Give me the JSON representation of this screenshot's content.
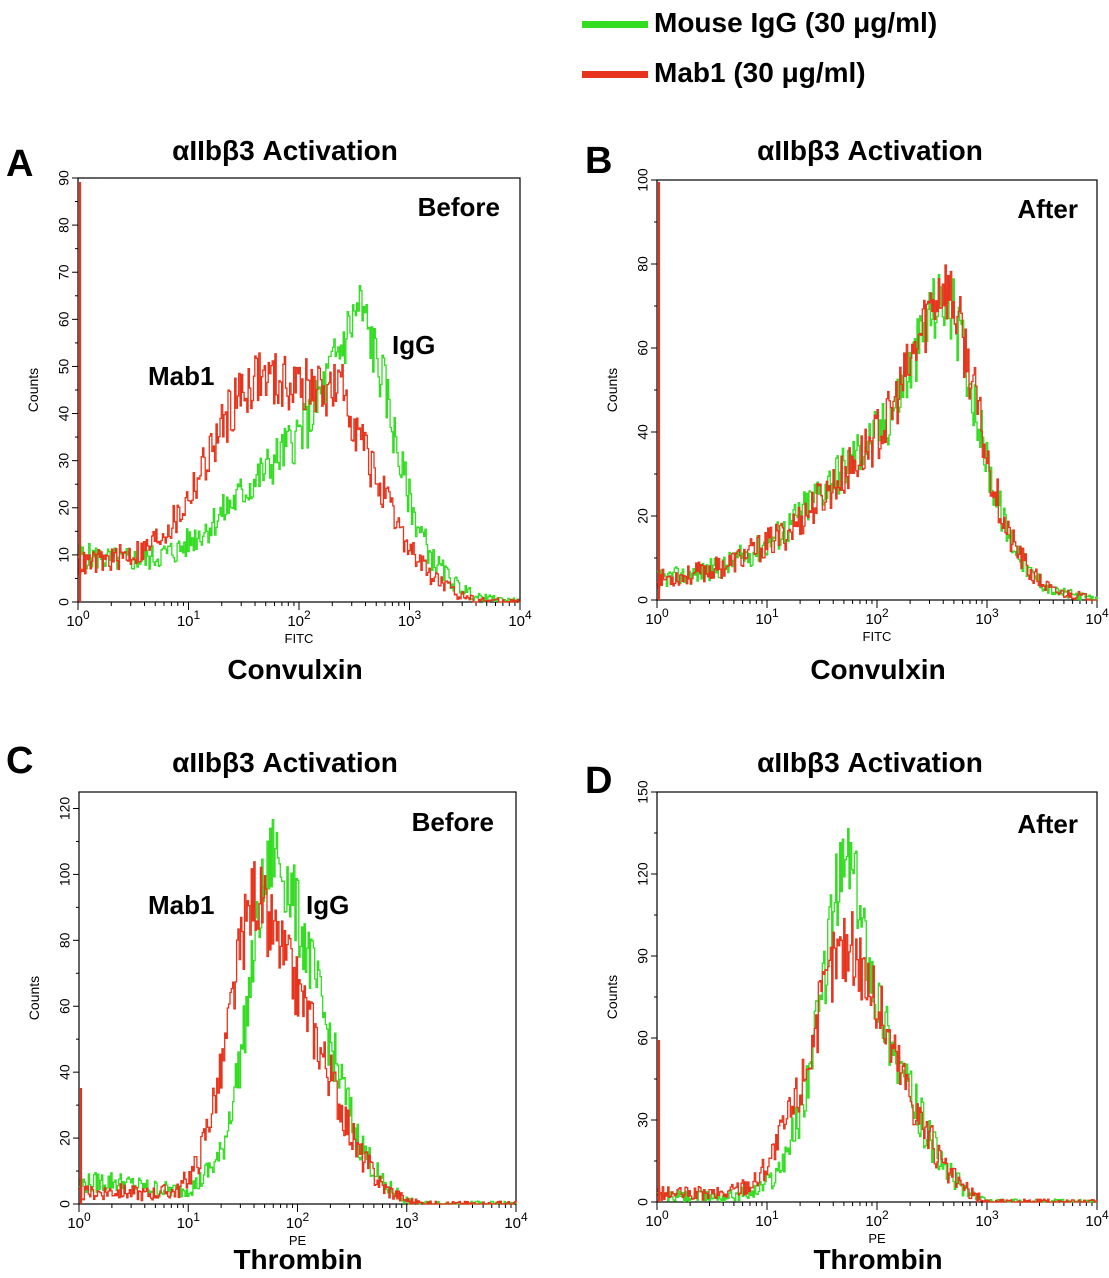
{
  "legend": [
    {
      "label": "Mouse IgG (30 μg/ml)",
      "color": "#33dd22"
    },
    {
      "label": "Mab1 (30 μg/ml)",
      "color": "#e8341c"
    }
  ],
  "panels": [
    {
      "letter": "A",
      "title": "αIIbβ3 Activation",
      "corner": "Before",
      "bottom_label": "Convulxin"
    },
    {
      "letter": "B",
      "title": "αIIbβ3 Activation",
      "corner": "After",
      "bottom_label": "Convulxin"
    },
    {
      "letter": "C",
      "title": "αIIbβ3 Activation",
      "corner": "Before",
      "bottom_label": "Thrombin"
    },
    {
      "letter": "D",
      "title": "αIIbβ3 Activation",
      "corner": "After",
      "bottom_label": "Thrombin"
    }
  ],
  "chart_data": [
    {
      "type": "line",
      "xlabel": "FITC",
      "ylabel": "Counts",
      "xscale": "log",
      "xlim": [
        1,
        10000
      ],
      "ylim": [
        0,
        90
      ],
      "yticks": [
        0,
        10,
        20,
        30,
        40,
        50,
        60,
        70,
        80,
        90
      ],
      "annotations": [
        {
          "text": "Mab1"
        },
        {
          "text": "IgG"
        }
      ],
      "series": [
        {
          "color": "#33dd22",
          "x": [
            1,
            2,
            4,
            8,
            15,
            30,
            60,
            120,
            200,
            280,
            350,
            450,
            600,
            800,
            1100,
            1600,
            2500,
            4000,
            7000,
            10000
          ],
          "y": [
            10,
            9,
            9,
            11,
            16,
            23,
            30,
            38,
            50,
            58,
            63,
            55,
            45,
            30,
            18,
            9,
            4,
            1,
            0.5,
            0
          ]
        },
        {
          "color": "#e8341c",
          "x": [
            1,
            2,
            4,
            8,
            15,
            25,
            40,
            60,
            100,
            150,
            250,
            350,
            500,
            700,
            1000,
            1500,
            2500,
            4000,
            10000
          ],
          "y": [
            8,
            9,
            11,
            18,
            31,
            42,
            48,
            47,
            46,
            45,
            45,
            35,
            26,
            18,
            11,
            6,
            2,
            0.5,
            0
          ]
        }
      ]
    },
    {
      "type": "line",
      "xlabel": "FITC",
      "ylabel": "Counts",
      "xscale": "log",
      "xlim": [
        1,
        10000
      ],
      "ylim": [
        0,
        100
      ],
      "yticks": [
        0,
        20,
        40,
        60,
        80,
        100
      ],
      "annotations": [],
      "series": [
        {
          "color": "#33dd22",
          "x": [
            1,
            2,
            4,
            8,
            15,
            30,
            60,
            120,
            200,
            300,
            400,
            500,
            700,
            1000,
            1500,
            2500,
            4000,
            7000,
            10000
          ],
          "y": [
            5,
            6,
            8,
            12,
            17,
            26,
            34,
            42,
            55,
            68,
            72,
            68,
            52,
            32,
            16,
            6,
            2,
            1,
            0
          ]
        },
        {
          "color": "#e8341c",
          "x": [
            1,
            2,
            4,
            8,
            15,
            30,
            60,
            120,
            200,
            300,
            400,
            500,
            700,
            1000,
            1500,
            2500,
            4000,
            7000,
            10000
          ],
          "y": [
            5,
            6,
            8,
            12,
            16,
            24,
            32,
            42,
            56,
            70,
            76,
            70,
            54,
            33,
            16,
            6,
            2,
            1,
            0
          ]
        }
      ]
    },
    {
      "type": "line",
      "xlabel": "PE",
      "ylabel": "Counts",
      "xscale": "log",
      "xlim": [
        1,
        10000
      ],
      "ylim": [
        0,
        125
      ],
      "yticks": [
        0,
        20,
        40,
        60,
        80,
        100,
        120
      ],
      "annotations": [
        {
          "text": "Mab1"
        },
        {
          "text": "IgG"
        }
      ],
      "series": [
        {
          "color": "#33dd22",
          "x": [
            1,
            2,
            4,
            8,
            12,
            20,
            30,
            45,
            60,
            80,
            120,
            200,
            350,
            600,
            1000,
            1500,
            10000
          ],
          "y": [
            6,
            7,
            5,
            4,
            6,
            15,
            45,
            90,
            108,
            98,
            78,
            48,
            20,
            6,
            1,
            0,
            0
          ]
        },
        {
          "color": "#e8341c",
          "x": [
            1,
            2,
            4,
            8,
            12,
            20,
            30,
            40,
            55,
            80,
            120,
            200,
            350,
            600,
            1000,
            1500,
            10000
          ],
          "y": [
            3,
            4,
            3,
            4,
            12,
            40,
            78,
            95,
            85,
            72,
            58,
            38,
            16,
            5,
            1,
            0,
            0
          ]
        }
      ]
    },
    {
      "type": "line",
      "xlabel": "PE",
      "ylabel": "Counts",
      "xscale": "log",
      "xlim": [
        1,
        10000
      ],
      "ylim": [
        0,
        150
      ],
      "yticks": [
        0,
        30,
        60,
        90,
        120,
        150
      ],
      "annotations": [],
      "series": [
        {
          "color": "#33dd22",
          "x": [
            1,
            2,
            4,
            8,
            12,
            20,
            30,
            40,
            55,
            70,
            100,
            150,
            250,
            400,
            700,
            1000,
            10000
          ],
          "y": [
            2,
            2,
            2,
            4,
            10,
            32,
            70,
            110,
            128,
            105,
            75,
            52,
            30,
            12,
            3,
            0,
            0
          ]
        },
        {
          "color": "#e8341c",
          "x": [
            1,
            2,
            4,
            8,
            12,
            20,
            30,
            40,
            55,
            70,
            100,
            150,
            250,
            400,
            700,
            1000,
            10000
          ],
          "y": [
            3,
            3,
            3,
            8,
            20,
            42,
            70,
            88,
            95,
            88,
            72,
            52,
            30,
            12,
            3,
            0,
            0
          ]
        }
      ]
    }
  ]
}
